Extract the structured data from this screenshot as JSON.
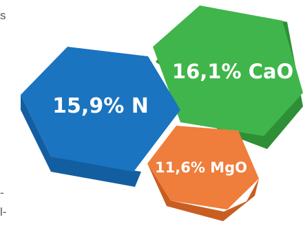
{
  "left_edge_text": [
    "s",
    "-",
    "l-"
  ],
  "hexagons": [
    {
      "id": "n",
      "label": "15,9% N",
      "color": "#1a74bf"
    },
    {
      "id": "cao",
      "label": "16,1% CaO",
      "color": "#3fb34a"
    },
    {
      "id": "mgo",
      "label": "11,6% MgO",
      "color": "#ef7d3c"
    }
  ]
}
